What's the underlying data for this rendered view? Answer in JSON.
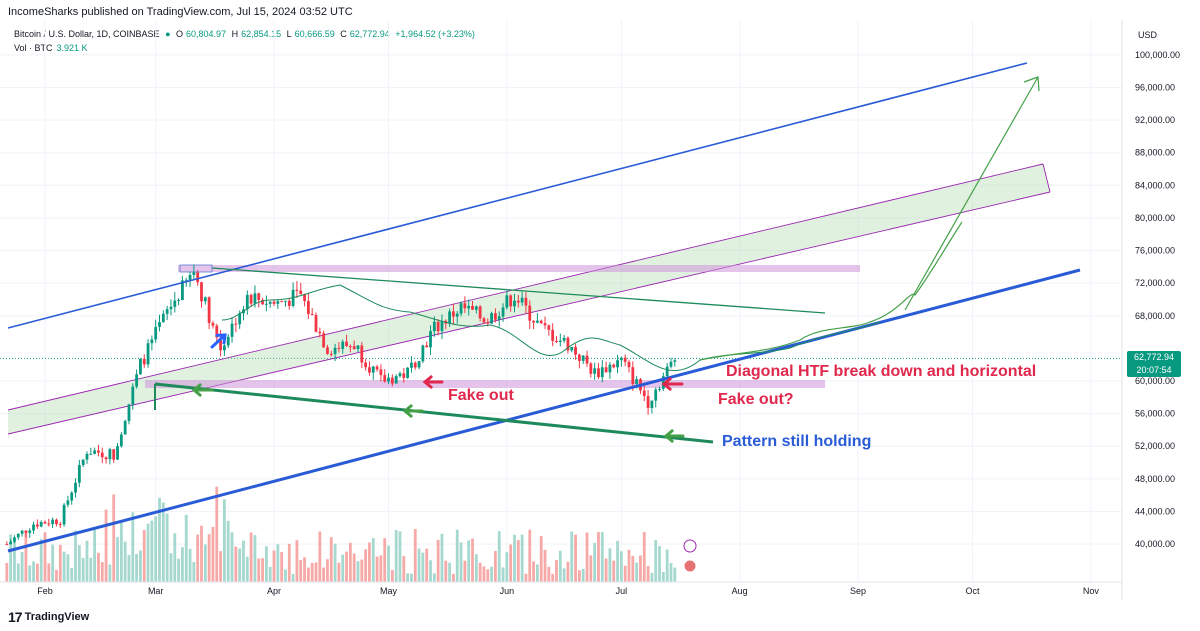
{
  "header": {
    "publisher": "IncomeSharks published on TradingView.com, Jul 15, 2024 03:52 UTC"
  },
  "legend": {
    "symbol": "Bitcoin / U.S. Dollar, 1D, COINBASE",
    "open_label": "O",
    "open": "60,804.97",
    "high_label": "H",
    "high": "62,854.15",
    "low_label": "L",
    "low": "60,666.59",
    "close_label": "C",
    "close": "62,772.94",
    "change": "+1,964.52 (+3.23%)",
    "volume_label": "Vol · BTC",
    "volume": "3.921 K"
  },
  "price_axis": {
    "currency": "USD"
  },
  "current_price": {
    "price": "62,772.94",
    "countdown": "20:07:54"
  },
  "footer": {
    "brand": "TradingView",
    "logo": "17"
  },
  "colors": {
    "up": "#089981",
    "down": "#f23645",
    "vol_up": "#a5d8cf",
    "vol_down": "#f7a9a7",
    "channel": "#2a5bd7",
    "purple": "#9c27b0",
    "green_line": "#1e8a5c",
    "annot_red": "#e0284d",
    "annot_blue": "#2a5bd7",
    "annot_green": "#43a047"
  },
  "chart_data": {
    "type": "candlestick",
    "symbol": "BTCUSD",
    "timeframe": "1D",
    "ylim": [
      38000,
      102000
    ],
    "y_ticks": [
      {
        "value": 100000,
        "label": "100,000.00"
      },
      {
        "value": 96000,
        "label": "96,000.00"
      },
      {
        "value": 92000,
        "label": "92,000.00"
      },
      {
        "value": 88000,
        "label": "88,000.00"
      },
      {
        "value": 84000,
        "label": "84,000.00"
      },
      {
        "value": 80000,
        "label": "80,000.00"
      },
      {
        "value": 76000,
        "label": "76,000.00"
      },
      {
        "value": 72000,
        "label": "72,000.00"
      },
      {
        "value": 68000,
        "label": "68,000.00"
      },
      {
        "value": 60000,
        "label": "60,000.00"
      },
      {
        "value": 56000,
        "label": "56,000.00"
      },
      {
        "value": 52000,
        "label": "52,000.00"
      },
      {
        "value": 48000,
        "label": "48,000.00"
      },
      {
        "value": 44000,
        "label": "44,000.00"
      },
      {
        "value": 40000,
        "label": "40,000.00"
      }
    ],
    "x_ticks": [
      {
        "date": "2024-02-01",
        "label": "Feb"
      },
      {
        "date": "2024-03-01",
        "label": "Mar"
      },
      {
        "date": "2024-04-01",
        "label": "Apr"
      },
      {
        "date": "2024-05-01",
        "label": "May"
      },
      {
        "date": "2024-06-01",
        "label": "Jun"
      },
      {
        "date": "2024-07-01",
        "label": "Jul"
      },
      {
        "date": "2024-08-01",
        "label": "Aug"
      },
      {
        "date": "2024-09-01",
        "label": "Sep"
      },
      {
        "date": "2024-10-01",
        "label": "Oct"
      },
      {
        "date": "2024-11-01",
        "label": "Nov"
      }
    ],
    "closes_by_week": [
      {
        "date": "2024-01-22",
        "price": 40000
      },
      {
        "date": "2024-01-29",
        "price": 42500
      },
      {
        "date": "2024-02-05",
        "price": 43000
      },
      {
        "date": "2024-02-12",
        "price": 51500
      },
      {
        "date": "2024-02-19",
        "price": 51000
      },
      {
        "date": "2024-02-26",
        "price": 62000
      },
      {
        "date": "2024-03-04",
        "price": 68500
      },
      {
        "date": "2024-03-11",
        "price": 73500
      },
      {
        "date": "2024-03-18",
        "price": 64000
      },
      {
        "date": "2024-03-25",
        "price": 70500
      },
      {
        "date": "2024-04-01",
        "price": 69500
      },
      {
        "date": "2024-04-08",
        "price": 70500
      },
      {
        "date": "2024-04-15",
        "price": 64000
      },
      {
        "date": "2024-04-22",
        "price": 64500
      },
      {
        "date": "2024-04-29",
        "price": 60000
      },
      {
        "date": "2024-05-06",
        "price": 61000
      },
      {
        "date": "2024-05-13",
        "price": 66500
      },
      {
        "date": "2024-05-20",
        "price": 69000
      },
      {
        "date": "2024-05-27",
        "price": 67500
      },
      {
        "date": "2024-06-03",
        "price": 70500
      },
      {
        "date": "2024-06-10",
        "price": 66500
      },
      {
        "date": "2024-06-17",
        "price": 64500
      },
      {
        "date": "2024-06-24",
        "price": 61000
      },
      {
        "date": "2024-07-01",
        "price": 62500
      },
      {
        "date": "2024-07-08",
        "price": 57500
      },
      {
        "date": "2024-07-15",
        "price": 62773
      }
    ],
    "annotations": [
      {
        "text": "Fake out",
        "color": "#e0284d"
      },
      {
        "text": "Diagonal HTF break down and horizontal",
        "color": "#e0284d"
      },
      {
        "text": "Fake out?",
        "color": "#e0284d"
      },
      {
        "text": "Pattern still holding",
        "color": "#2a5bd7"
      }
    ]
  }
}
